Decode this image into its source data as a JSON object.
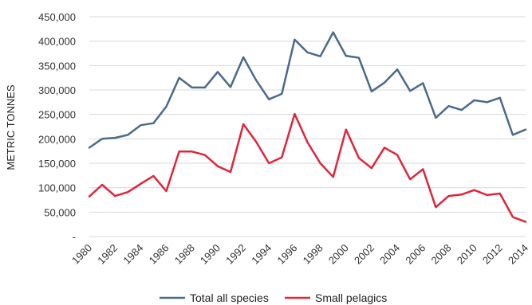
{
  "chart_data": {
    "type": "line",
    "xlabel": "",
    "ylabel": "METRIC TONNES",
    "ylim": [
      0,
      450000
    ],
    "yticks": [
      "-",
      "50,000",
      "100,000",
      "150,000",
      "200,000",
      "250,000",
      "300,000",
      "350,000",
      "400,000",
      "450,000"
    ],
    "ytick_values": [
      0,
      50000,
      100000,
      150000,
      200000,
      250000,
      300000,
      350000,
      400000,
      450000
    ],
    "x": [
      1980,
      1981,
      1982,
      1983,
      1984,
      1985,
      1986,
      1987,
      1988,
      1989,
      1990,
      1991,
      1992,
      1993,
      1994,
      1995,
      1996,
      1997,
      1998,
      1999,
      2000,
      2001,
      2002,
      2003,
      2004,
      2005,
      2006,
      2007,
      2008,
      2009,
      2010,
      2011,
      2012,
      2013,
      2014
    ],
    "xtick_labels": [
      "1980",
      "1982",
      "1984",
      "1986",
      "1988",
      "1990",
      "1992",
      "1994",
      "1996",
      "1998",
      "2000",
      "2002",
      "2004",
      "2006",
      "2008",
      "2010",
      "2012",
      "2014"
    ],
    "xtick_values": [
      1980,
      1982,
      1984,
      1986,
      1988,
      1990,
      1992,
      1994,
      1996,
      1998,
      2000,
      2002,
      2004,
      2006,
      2008,
      2010,
      2012,
      2014
    ],
    "grid": true,
    "legend_position": "bottom",
    "series": [
      {
        "name": "Total all species",
        "color": "#4a6a8c",
        "values": [
          182000,
          200000,
          202000,
          208000,
          228000,
          232000,
          266000,
          325000,
          305000,
          305000,
          337000,
          306000,
          367000,
          320000,
          281000,
          292000,
          403000,
          377000,
          369000,
          418000,
          370000,
          366000,
          297000,
          315000,
          342000,
          298000,
          314000,
          243000,
          267000,
          259000,
          279000,
          275000,
          284000,
          208000,
          219000
        ]
      },
      {
        "name": "Small pelagics",
        "color": "#e0253a",
        "values": [
          82000,
          106000,
          83000,
          91000,
          108000,
          124000,
          93000,
          174000,
          174000,
          167000,
          144000,
          132000,
          230000,
          194000,
          150000,
          162000,
          251000,
          193000,
          150000,
          122000,
          219000,
          161000,
          140000,
          182000,
          167000,
          117000,
          138000,
          60000,
          83000,
          86000,
          95000,
          85000,
          88000,
          40000,
          30000
        ]
      }
    ]
  }
}
